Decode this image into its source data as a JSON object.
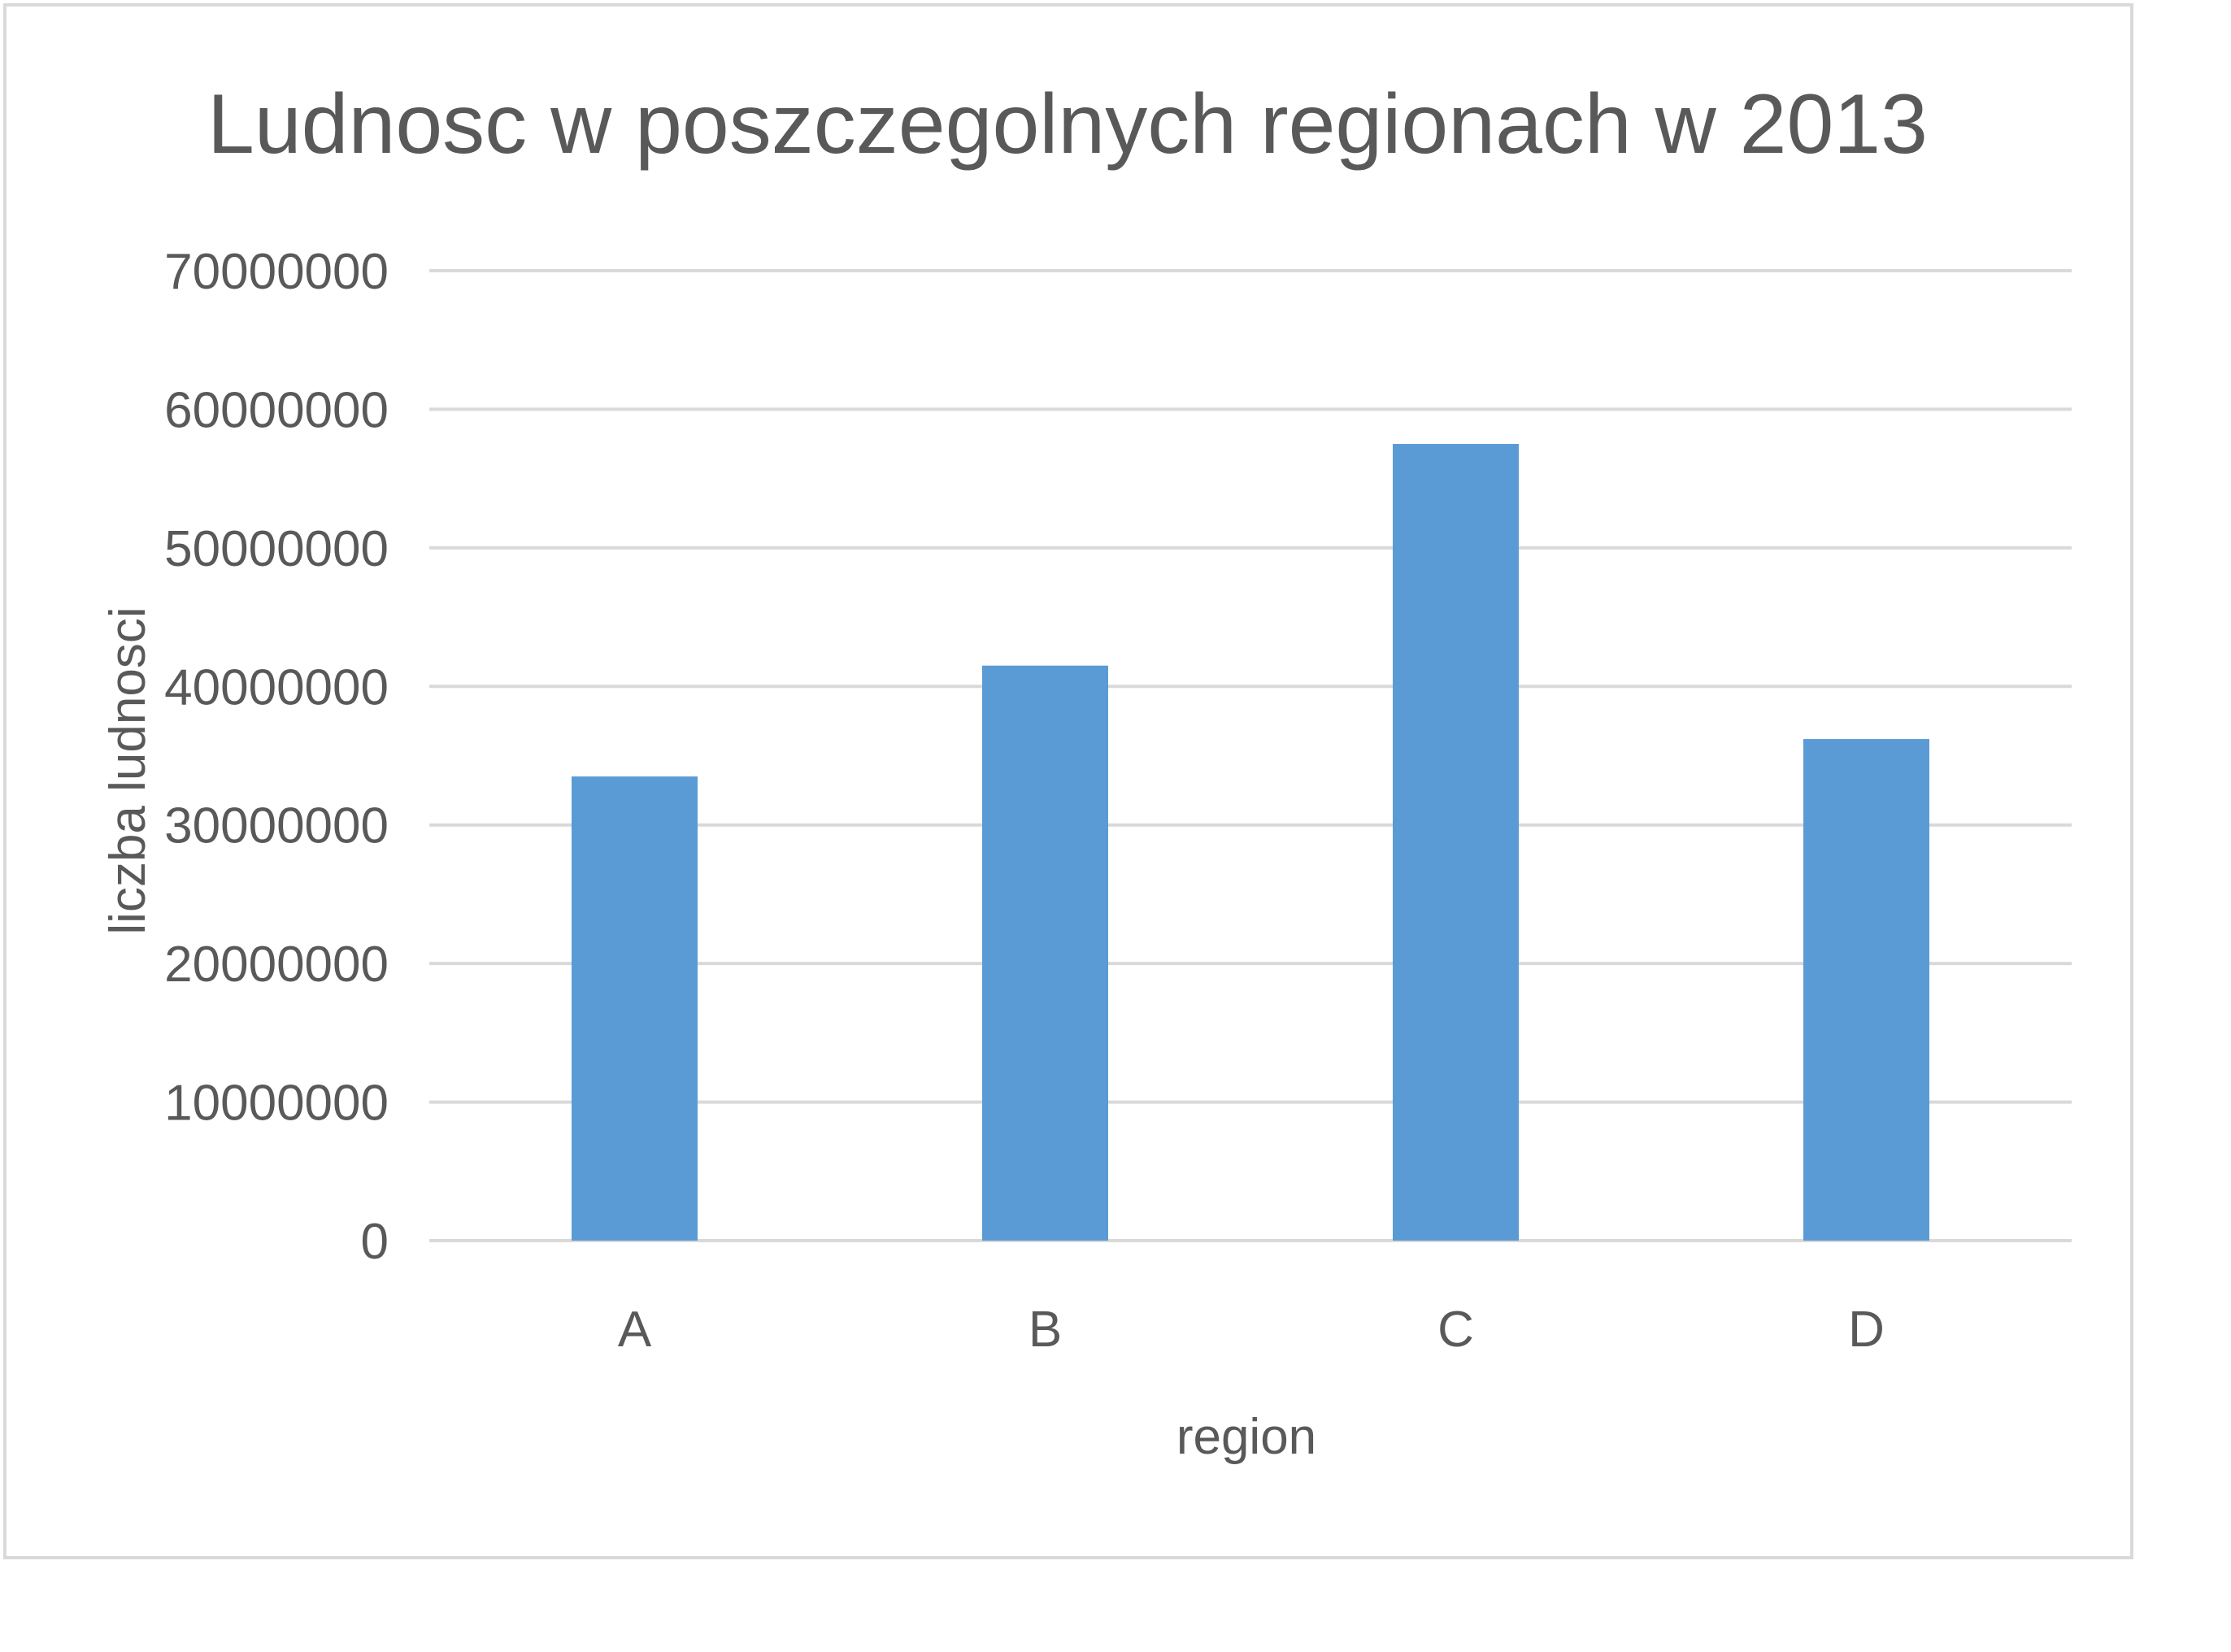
{
  "chart_data": {
    "type": "bar",
    "title": "Ludnosc w poszczegolnych regionach w 2013",
    "xlabel": "region",
    "ylabel": "liczba ludnosci",
    "categories": [
      "A",
      "B",
      "C",
      "D"
    ],
    "values": [
      33500000,
      41500000,
      57500000,
      36200000
    ],
    "ylim": [
      0,
      70000000
    ],
    "yticks": [
      "0",
      "10000000",
      "20000000",
      "30000000",
      "40000000",
      "50000000",
      "60000000",
      "70000000"
    ],
    "grid": true,
    "legend": "none",
    "colors": {
      "bar": "#5b9bd5",
      "grid": "#d9d9d9",
      "text": "#595959"
    }
  }
}
